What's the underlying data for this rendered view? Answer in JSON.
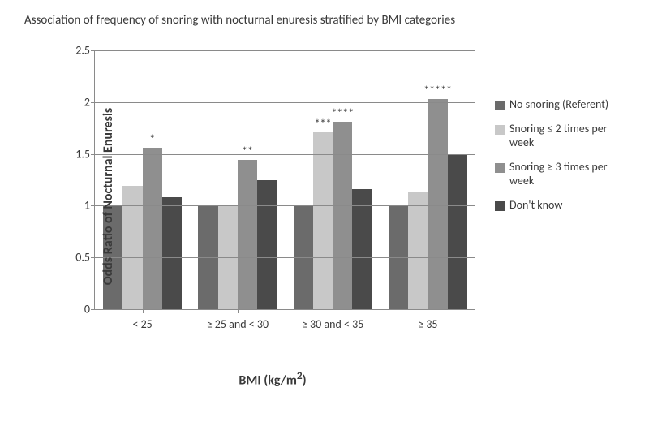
{
  "chart": {
    "type": "bar",
    "title": "Association of frequency of snoring with nocturnal enuresis stratified by BMI categories",
    "title_fontsize": 15,
    "title_color": "#3a3a3a",
    "background_color": "#ffffff",
    "axis_color": "#8a8a8a",
    "grid_color": "#8a8a8a",
    "tick_fontsize": 14,
    "tick_color": "#3a3a3a",
    "annot_fontsize": 14,
    "annot_color": "#3a3a3a",
    "y_axis": {
      "title": "Odds Ratio of Nocturnal Enuresis",
      "title_fontsize": 16,
      "lim": [
        0,
        2.5
      ],
      "tick_step": 0.5,
      "ticks": [
        "0",
        "0.5",
        "1",
        "1.5",
        "2",
        "2.5"
      ]
    },
    "x_axis": {
      "title_prefix": "BMI (kg/m",
      "title_super": "2",
      "title_suffix": ")",
      "title_fontsize": 16,
      "categories": [
        "< 25",
        "≥ 25 and < 30",
        "≥ 30 and < 35",
        "≥ 35"
      ]
    },
    "series": [
      {
        "label": "No snoring (Referent)",
        "color": "#6b6b6b"
      },
      {
        "label": "Snoring ≤ 2 times per week",
        "color": "#c8c8c8"
      },
      {
        "label": "Snoring ≥ 3 times per week",
        "color": "#8f8f8f"
      },
      {
        "label": "Don't know",
        "color": "#4a4a4a"
      }
    ],
    "bar_width": 0.95,
    "groups": [
      {
        "values": [
          1.0,
          1.19,
          1.56,
          1.08
        ],
        "annotations": [
          "",
          "",
          "*",
          ""
        ]
      },
      {
        "values": [
          1.0,
          1.0,
          1.44,
          1.25
        ],
        "annotations": [
          "",
          "",
          "**",
          ""
        ]
      },
      {
        "values": [
          1.0,
          1.71,
          1.81,
          1.16
        ],
        "annotations": [
          "",
          "***",
          "****",
          ""
        ]
      },
      {
        "values": [
          1.0,
          1.13,
          2.03,
          1.49
        ],
        "annotations": [
          "",
          "",
          "*****",
          ""
        ]
      }
    ]
  }
}
